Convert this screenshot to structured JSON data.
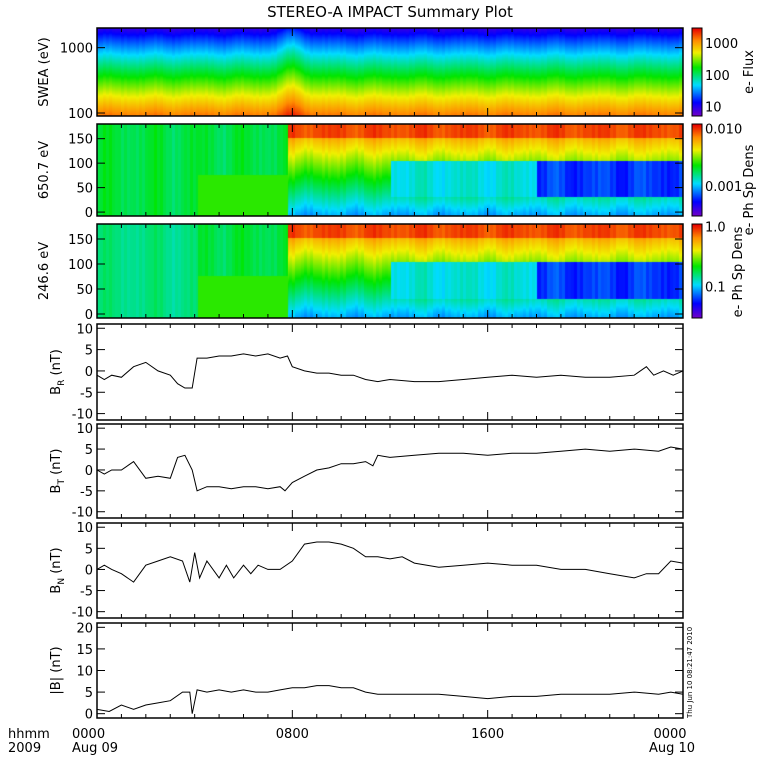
{
  "title": "STEREO-A IMPACT Summary Plot",
  "timestamp": "Thu Jun 10 08:21:47 2010",
  "x_axis": {
    "row1_label": "hhmm",
    "row2_label": "2009",
    "ticks": [
      {
        "hour": 0,
        "time": "0000",
        "date": "Aug 09"
      },
      {
        "hour": 8,
        "time": "0800",
        "date": ""
      },
      {
        "hour": 16,
        "time": "1600",
        "date": ""
      },
      {
        "hour": 24,
        "time": "0000",
        "date": "Aug 10"
      }
    ]
  },
  "chart_data": [
    {
      "type": "heatmap",
      "ylabel": "SWEA (eV)",
      "yscale": "log",
      "ylim": [
        90,
        2000
      ],
      "yticks": [
        "1000",
        "100"
      ],
      "ytick_values": [
        1000,
        100
      ],
      "colorbar": {
        "label": "e- Flux",
        "scale": "log",
        "range": [
          5,
          3000
        ],
        "ticks": [
          "1000",
          "100",
          "10"
        ],
        "tick_values": [
          1000,
          100,
          10
        ]
      }
    },
    {
      "type": "heatmap",
      "ylabel": "650.7 eV",
      "ylim": [
        -8,
        180
      ],
      "yticks": [
        "150",
        "100",
        "50",
        "0"
      ],
      "ytick_values": [
        150,
        100,
        50,
        0
      ],
      "colorbar": {
        "label": "e- Ph Sp Dens",
        "scale": "log",
        "range": [
          0.0003,
          0.012
        ],
        "ticks": [
          "0.010",
          "0.001"
        ],
        "tick_values": [
          0.01,
          0.001
        ]
      }
    },
    {
      "type": "heatmap",
      "ylabel": "246.6 eV",
      "ylim": [
        -8,
        180
      ],
      "yticks": [
        "150",
        "100",
        "50",
        "0"
      ],
      "ytick_values": [
        150,
        100,
        50,
        0
      ],
      "colorbar": {
        "label": "e- Ph Sp Dens",
        "scale": "log",
        "range": [
          0.03,
          1.1
        ],
        "ticks": [
          "1.0",
          "0.1"
        ],
        "tick_values": [
          1.0,
          0.1
        ]
      }
    },
    {
      "type": "line",
      "ylabel_main": "B",
      "ylabel_sub": "R",
      "ylabel_unit": " (nT)",
      "ylim": [
        -11.5,
        11
      ],
      "yticks": [
        "10",
        "5",
        "0",
        "-5",
        "-10"
      ],
      "ytick_values": [
        10,
        5,
        0,
        -5,
        -10
      ],
      "x": [
        0,
        0.3,
        0.6,
        1,
        1.5,
        2,
        2.5,
        3,
        3.3,
        3.6,
        3.9,
        4.1,
        4.5,
        5,
        5.5,
        6,
        6.5,
        7,
        7.5,
        7.8,
        8,
        8.5,
        9,
        9.5,
        10,
        10.5,
        11,
        11.5,
        12,
        13,
        14,
        15,
        16,
        17,
        18,
        19,
        20,
        21,
        22,
        22.5,
        22.8,
        23.2,
        23.6,
        24
      ],
      "y": [
        -1,
        -2,
        -1,
        -1.5,
        1,
        2,
        0,
        -1,
        -3,
        -4,
        -4,
        3,
        3,
        3.5,
        3.5,
        4,
        3.5,
        4,
        3,
        3.5,
        1,
        0,
        -0.5,
        -0.5,
        -1,
        -1,
        -2,
        -2.5,
        -2,
        -2.5,
        -2.5,
        -2,
        -1.5,
        -1,
        -1.5,
        -1,
        -1.5,
        -1.5,
        -1,
        1,
        -1,
        0,
        -1,
        0
      ]
    },
    {
      "type": "line",
      "ylabel_main": "B",
      "ylabel_sub": "T",
      "ylabel_unit": " (nT)",
      "ylim": [
        -11.5,
        11
      ],
      "yticks": [
        "10",
        "5",
        "0",
        "-5",
        "-10"
      ],
      "ytick_values": [
        10,
        5,
        0,
        -5,
        -10
      ],
      "x": [
        0,
        0.3,
        0.6,
        1,
        1.5,
        2,
        2.5,
        3,
        3.3,
        3.6,
        3.9,
        4.1,
        4.5,
        5,
        5.5,
        6,
        6.5,
        7,
        7.5,
        7.7,
        8,
        8.5,
        9,
        9.5,
        10,
        10.5,
        11,
        11.3,
        11.5,
        12,
        13,
        14,
        15,
        16,
        17,
        18,
        19,
        20,
        21,
        22,
        23,
        23.5,
        24
      ],
      "y": [
        0,
        -1,
        0,
        0,
        2,
        -2,
        -1.5,
        -2,
        3,
        3.5,
        0,
        -5,
        -4,
        -4,
        -4.5,
        -4,
        -4,
        -4.5,
        -4,
        -5,
        -3,
        -1.5,
        0,
        0.5,
        1.5,
        1.5,
        2,
        1,
        3.5,
        3,
        3.5,
        4,
        4,
        3.5,
        4,
        4,
        4.5,
        5,
        4.5,
        5,
        4.5,
        5.5,
        5
      ]
    },
    {
      "type": "line",
      "ylabel_main": "B",
      "ylabel_sub": "N",
      "ylabel_unit": " (nT)",
      "ylim": [
        -11.5,
        11
      ],
      "yticks": [
        "10",
        "5",
        "0",
        "-5",
        "-10"
      ],
      "ytick_values": [
        10,
        5,
        0,
        -5,
        -10
      ],
      "x": [
        0,
        0.3,
        0.6,
        1,
        1.5,
        2,
        2.5,
        3,
        3.5,
        3.8,
        4,
        4.2,
        4.5,
        5,
        5.3,
        5.6,
        6,
        6.3,
        6.6,
        7,
        7.5,
        8,
        8.5,
        9,
        9.5,
        10,
        10.5,
        11,
        11.5,
        12,
        12.5,
        13,
        14,
        15,
        16,
        17,
        18,
        19,
        20,
        21,
        22,
        22.5,
        23,
        23.5,
        24
      ],
      "y": [
        0,
        1,
        0,
        -1,
        -3,
        1,
        2,
        3,
        2,
        -3,
        4,
        -2,
        2,
        -2,
        1,
        -2,
        1,
        -1,
        1,
        0,
        0,
        2,
        6,
        6.5,
        6.5,
        6,
        5,
        3,
        3,
        2.5,
        3,
        1.5,
        0.5,
        1,
        1.5,
        1,
        1,
        0,
        0,
        -1,
        -2,
        -1,
        -1,
        2,
        1.5
      ]
    },
    {
      "type": "line",
      "ylabel_main": "|B|",
      "ylabel_sub": "",
      "ylabel_unit": " (nT)",
      "ylim": [
        -1,
        21
      ],
      "yticks": [
        "20",
        "15",
        "10",
        "5",
        "0"
      ],
      "ytick_values": [
        20,
        15,
        10,
        5,
        0
      ],
      "x": [
        0,
        0.5,
        1,
        1.5,
        2,
        2.5,
        3,
        3.5,
        3.8,
        3.9,
        4.1,
        4.5,
        5,
        5.5,
        6,
        6.5,
        7,
        7.5,
        8,
        8.5,
        9,
        9.5,
        10,
        10.5,
        11,
        11.5,
        12,
        13,
        14,
        15,
        16,
        17,
        18,
        19,
        20,
        21,
        22,
        23,
        23.5,
        24
      ],
      "y": [
        1,
        0.5,
        2,
        1,
        2,
        2.5,
        3,
        5,
        5,
        0,
        5.5,
        5,
        5.5,
        5,
        5.5,
        5,
        5,
        5.5,
        6,
        6,
        6.5,
        6.5,
        6,
        6,
        5,
        4.5,
        4.5,
        4.5,
        4.5,
        4,
        3.5,
        4,
        4,
        4.5,
        4.5,
        4.5,
        5,
        4.5,
        5,
        4.5
      ]
    }
  ],
  "colors": {
    "line": "#000000",
    "axis": "#000000"
  }
}
